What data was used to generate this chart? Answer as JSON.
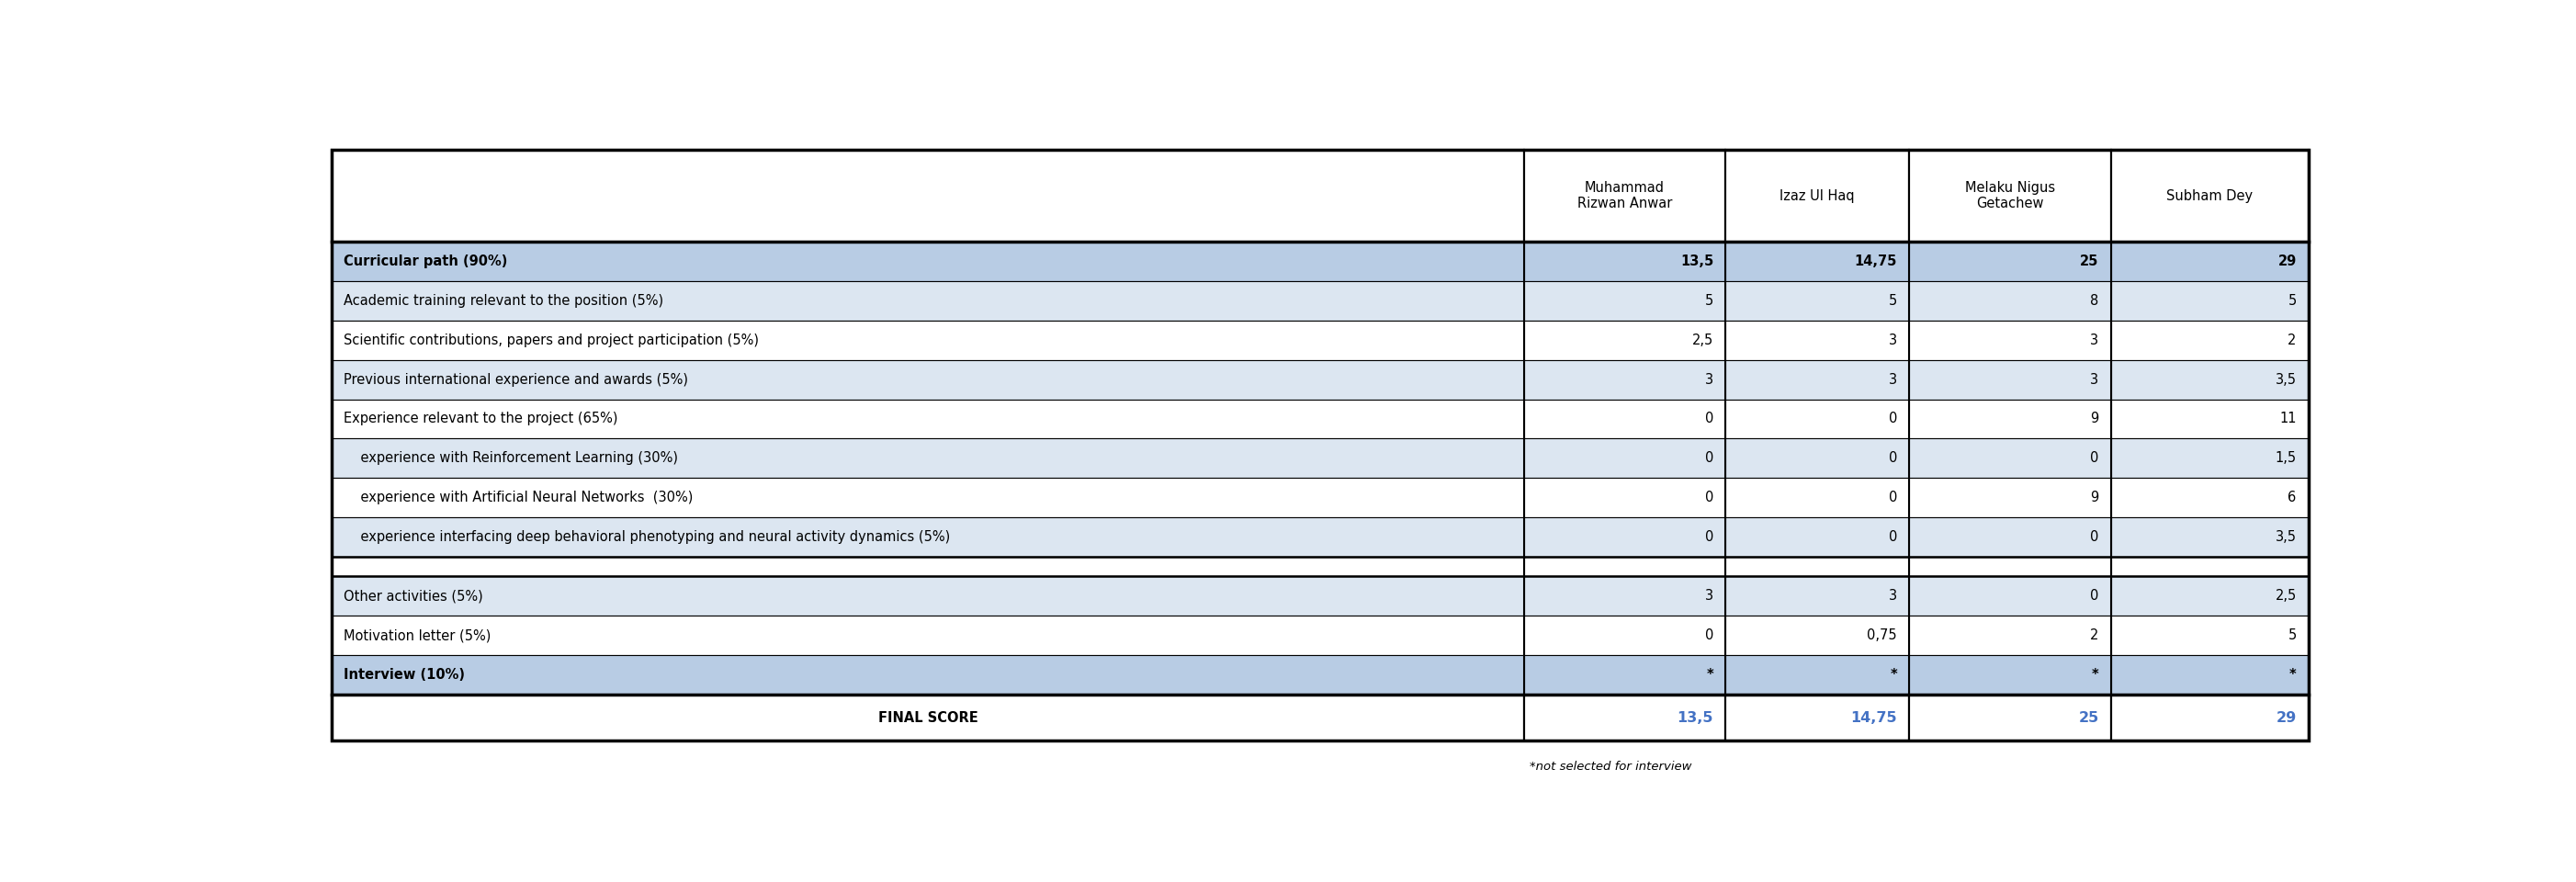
{
  "fig_width": 28.04,
  "fig_height": 9.6,
  "header_names": [
    "Muhammad\nRizwan Anwar",
    "Izaz Ul Haq",
    "Melaku Nigus\nGetachew",
    "Subham Dey"
  ],
  "rows": [
    {
      "label": "Curricular path (90%)",
      "values": [
        "13,5",
        "14,75",
        "25",
        "29"
      ],
      "bg": "#b8cce4",
      "text_bold": true,
      "is_separator": false,
      "is_blue": true
    },
    {
      "label": "Academic training relevant to the position (5%)",
      "values": [
        "5",
        "5",
        "8",
        "5"
      ],
      "bg": "#dce6f1",
      "text_bold": false,
      "is_separator": false,
      "is_blue": false
    },
    {
      "label": "Scientific contributions, papers and project participation (5%)",
      "values": [
        "2,5",
        "3",
        "3",
        "2"
      ],
      "bg": "#ffffff",
      "text_bold": false,
      "is_separator": false,
      "is_blue": false
    },
    {
      "label": "Previous international experience and awards (5%)",
      "values": [
        "3",
        "3",
        "3",
        "3,5"
      ],
      "bg": "#dce6f1",
      "text_bold": false,
      "is_separator": false,
      "is_blue": false
    },
    {
      "label": "Experience relevant to the project (65%)",
      "values": [
        "0",
        "0",
        "9",
        "11"
      ],
      "bg": "#ffffff",
      "text_bold": false,
      "is_separator": false,
      "is_blue": false
    },
    {
      "label": "    experience with Reinforcement Learning (30%)",
      "values": [
        "0",
        "0",
        "0",
        "1,5"
      ],
      "bg": "#dce6f1",
      "text_bold": false,
      "is_separator": false,
      "is_blue": false
    },
    {
      "label": "    experience with Artificial Neural Networks  (30%)",
      "values": [
        "0",
        "0",
        "9",
        "6"
      ],
      "bg": "#ffffff",
      "text_bold": false,
      "is_separator": false,
      "is_blue": false
    },
    {
      "label": "    experience interfacing deep behavioral phenotyping and neural activity dynamics (5%)",
      "values": [
        "0",
        "0",
        "0",
        "3,5"
      ],
      "bg": "#dce6f1",
      "text_bold": false,
      "is_separator": false,
      "is_blue": false
    },
    {
      "label": "",
      "values": [
        "",
        "",
        "",
        ""
      ],
      "bg": "#ffffff",
      "text_bold": false,
      "is_separator": true,
      "is_blue": false
    },
    {
      "label": "Other activities (5%)",
      "values": [
        "3",
        "3",
        "0",
        "2,5"
      ],
      "bg": "#dce6f1",
      "text_bold": false,
      "is_separator": false,
      "is_blue": false
    },
    {
      "label": "Motivation letter (5%)",
      "values": [
        "0",
        "0,75",
        "2",
        "5"
      ],
      "bg": "#ffffff",
      "text_bold": false,
      "is_separator": false,
      "is_blue": false
    },
    {
      "label": "Interview (10%)",
      "values": [
        "*",
        "*",
        "*",
        "*"
      ],
      "bg": "#b8cce4",
      "text_bold": true,
      "is_separator": false,
      "is_blue": true
    }
  ],
  "final_score_label": "FINAL SCORE",
  "final_score_values": [
    "13,5",
    "14,75",
    "25",
    "29"
  ],
  "final_score_color": "#4472c4",
  "footnote": "*not selected for interview"
}
